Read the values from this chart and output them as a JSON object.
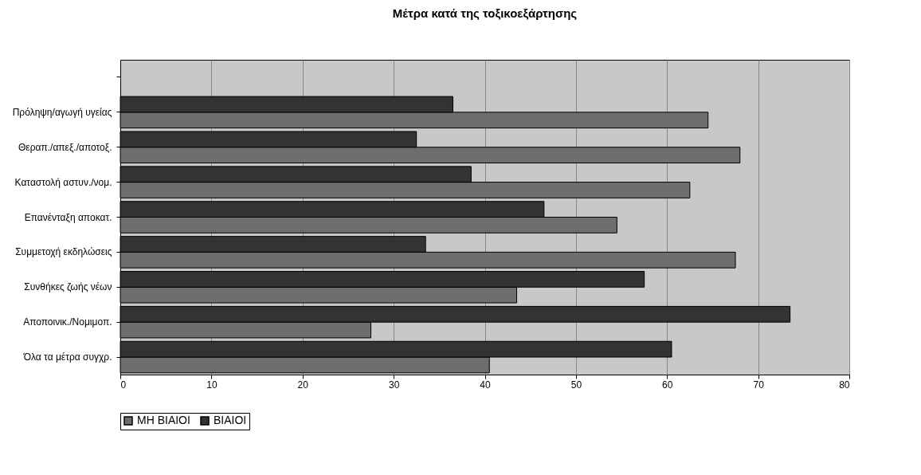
{
  "chart_data": {
    "type": "bar",
    "orientation": "horizontal",
    "title": "Μέτρα κατά της τοξικοεξάρτησης",
    "categories": [
      null,
      "Πρόληψη/αγωγή υγείας",
      "Θεραπ./απεξ./αποτοξ.",
      "Καταστολή αστυν./νομ.",
      "Επανένταξη αποκατ.",
      "Συμμετοχή εκδηλώσεις",
      "Συνθήκες ζωής νέων",
      "Αποποινικ./Νομιμοπ.",
      "Όλα τα μέτρα συγχρ."
    ],
    "series": [
      {
        "name": "ΜΗ ΒΙΑΙΟΙ",
        "color": "#6e6e6e",
        "values": [
          null,
          64.5,
          68,
          62.5,
          54.5,
          67.5,
          43.5,
          27.5,
          40.5
        ]
      },
      {
        "name": "ΒΙΑΙΟΙ",
        "color": "#333333",
        "values": [
          null,
          36.5,
          32.5,
          38.5,
          46.5,
          33.5,
          57.5,
          73.5,
          60.5
        ]
      }
    ],
    "xlim": [
      0,
      80
    ],
    "xticks": [
      0,
      10,
      20,
      30,
      40,
      50,
      60,
      70,
      80
    ],
    "grid": "x",
    "legend": "bottom"
  }
}
